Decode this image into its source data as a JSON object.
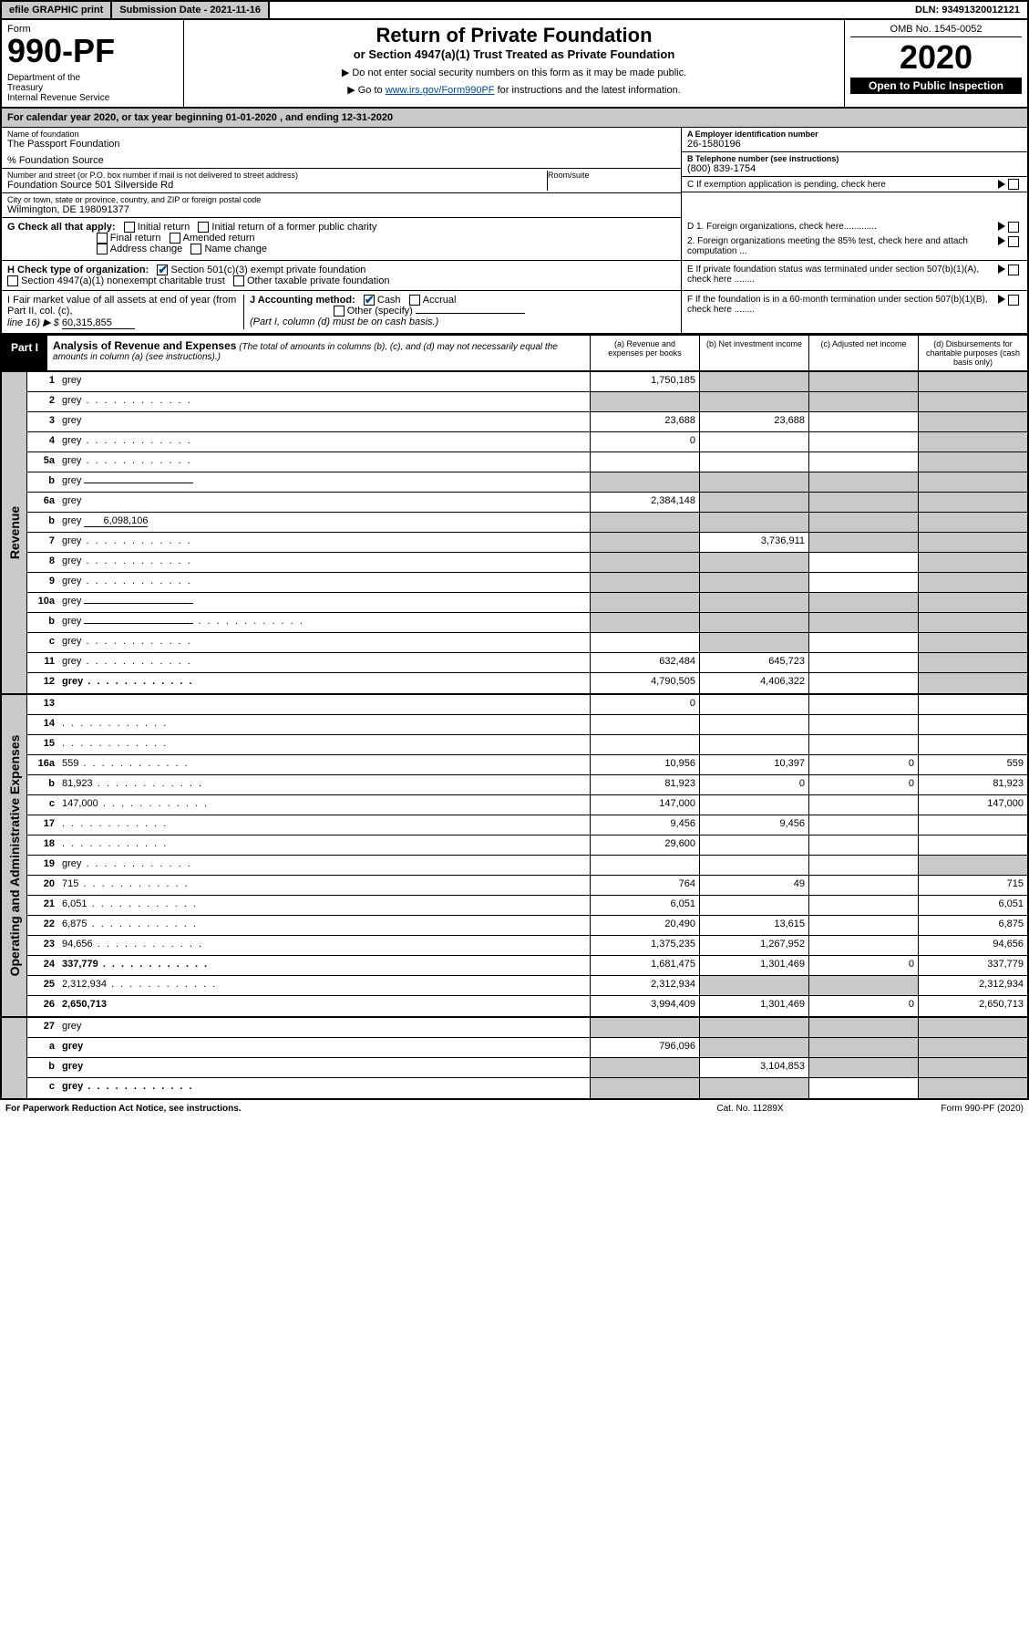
{
  "topbar": {
    "efile": "efile GRAPHIC print",
    "subdate_label": "Submission Date - 2021-11-16",
    "dln": "DLN: 93491320012121"
  },
  "header": {
    "form_word": "Form",
    "form_num": "990-PF",
    "dept": "Department of the Treasury\nInternal Revenue Service",
    "title": "Return of Private Foundation",
    "subtitle": "or Section 4947(a)(1) Trust Treated as Private Foundation",
    "instr1": "▶ Do not enter social security numbers on this form as it may be made public.",
    "instr2_pre": "▶ Go to ",
    "instr2_link": "www.irs.gov/Form990PF",
    "instr2_post": " for instructions and the latest information.",
    "omb": "OMB No. 1545-0052",
    "year": "2020",
    "open_pub": "Open to Public Inspection"
  },
  "calyear": "For calendar year 2020, or tax year beginning 01-01-2020                           , and ending 12-31-2020",
  "entity": {
    "name_lbl": "Name of foundation",
    "name_val": "The Passport Foundation",
    "care_of": "% Foundation Source",
    "addr_lbl": "Number and street (or P.O. box number if mail is not delivered to street address)",
    "addr_val": "Foundation Source 501 Silverside Rd",
    "room_lbl": "Room/suite",
    "city_lbl": "City or town, state or province, country, and ZIP or foreign postal code",
    "city_val": "Wilmington, DE  198091377",
    "a_lbl": "A Employer identification number",
    "a_val": "26-1580196",
    "b_lbl": "B Telephone number (see instructions)",
    "b_val": "(800) 839-1754",
    "c_lbl": "C If exemption application is pending, check here",
    "d1": "D 1. Foreign organizations, check here.............",
    "d2": "2. Foreign organizations meeting the 85% test, check here and attach computation ...",
    "e_lbl": "E  If private foundation status was terminated under section 507(b)(1)(A), check here ........",
    "f_lbl": "F  If the foundation is in a 60-month termination under section 507(b)(1)(B), check here ........"
  },
  "checks": {
    "g_label": "G Check all that apply:",
    "g_opts": [
      "Initial return",
      "Initial return of a former public charity",
      "Final return",
      "Amended return",
      "Address change",
      "Name change"
    ],
    "h_label": "H Check type of organization:",
    "h_opt1": "Section 501(c)(3) exempt private foundation",
    "h_opt2": "Section 4947(a)(1) nonexempt charitable trust",
    "h_opt3": "Other taxable private foundation",
    "i_label": "I Fair market value of all assets at end of year (from Part II, col. (c),",
    "i_line": "line 16) ▶ $",
    "i_val": "60,315,855",
    "j_label": "J Accounting method:",
    "j_cash": "Cash",
    "j_accrual": "Accrual",
    "j_other": "Other (specify)",
    "j_note": "(Part I, column (d) must be on cash basis.)"
  },
  "part1": {
    "label": "Part I",
    "title": "Analysis of Revenue and Expenses",
    "note": "(The total of amounts in columns (b), (c), and (d) may not necessarily equal the amounts in column (a) (see instructions).)",
    "col_a": "(a)   Revenue and expenses per books",
    "col_b": "(b)   Net investment income",
    "col_c": "(c)   Adjusted net income",
    "col_d": "(d)   Disbursements for charitable purposes (cash basis only)"
  },
  "sections": {
    "revenue": "Revenue",
    "opex": "Operating and Administrative Expenses"
  },
  "lines": [
    {
      "n": "1",
      "d": "grey",
      "a": "1,750,185",
      "b": "grey",
      "c": "grey"
    },
    {
      "n": "2",
      "d": "grey",
      "dots": true,
      "a": "grey",
      "b": "grey",
      "c": "grey"
    },
    {
      "n": "3",
      "d": "grey",
      "a": "23,688",
      "b": "23,688",
      "c": ""
    },
    {
      "n": "4",
      "d": "grey",
      "dots": true,
      "a": "0",
      "b": "",
      "c": ""
    },
    {
      "n": "5a",
      "d": "grey",
      "dots": true,
      "a": "",
      "b": "",
      "c": ""
    },
    {
      "n": "b",
      "d": "grey",
      "a": "grey",
      "b": "grey",
      "c": "grey",
      "inline_blank": true
    },
    {
      "n": "6a",
      "d": "grey",
      "a": "2,384,148",
      "b": "grey",
      "c": "grey"
    },
    {
      "n": "b",
      "d": "grey",
      "inline_val": "6,098,106",
      "a": "grey",
      "b": "grey",
      "c": "grey"
    },
    {
      "n": "7",
      "d": "grey",
      "dots": true,
      "a": "grey",
      "b": "3,736,911",
      "c": "grey"
    },
    {
      "n": "8",
      "d": "grey",
      "dots": true,
      "a": "grey",
      "b": "grey",
      "c": ""
    },
    {
      "n": "9",
      "d": "grey",
      "dots": true,
      "a": "grey",
      "b": "grey",
      "c": ""
    },
    {
      "n": "10a",
      "d": "grey",
      "a": "grey",
      "b": "grey",
      "c": "grey",
      "inline_blank": true
    },
    {
      "n": "b",
      "d": "grey",
      "dots": true,
      "a": "grey",
      "b": "grey",
      "c": "grey",
      "inline_blank": true
    },
    {
      "n": "c",
      "d": "grey",
      "dots": true,
      "a": "",
      "b": "grey",
      "c": ""
    },
    {
      "n": "11",
      "d": "grey",
      "dots": true,
      "a": "632,484",
      "b": "645,723",
      "c": ""
    },
    {
      "n": "12",
      "d": "grey",
      "dots": true,
      "bold": true,
      "a": "4,790,505",
      "b": "4,406,322",
      "c": ""
    }
  ],
  "oplines": [
    {
      "n": "13",
      "d": "",
      "a": "0",
      "b": "",
      "c": ""
    },
    {
      "n": "14",
      "d": "",
      "dots": true,
      "a": "",
      "b": "",
      "c": ""
    },
    {
      "n": "15",
      "d": "",
      "dots": true,
      "a": "",
      "b": "",
      "c": ""
    },
    {
      "n": "16a",
      "d": "559",
      "dots": true,
      "a": "10,956",
      "b": "10,397",
      "c": "0"
    },
    {
      "n": "b",
      "d": "81,923",
      "dots": true,
      "a": "81,923",
      "b": "0",
      "c": "0"
    },
    {
      "n": "c",
      "d": "147,000",
      "dots": true,
      "a": "147,000",
      "b": "",
      "c": ""
    },
    {
      "n": "17",
      "d": "",
      "dots": true,
      "a": "9,456",
      "b": "9,456",
      "c": ""
    },
    {
      "n": "18",
      "d": "",
      "dots": true,
      "a": "29,600",
      "b": "",
      "c": ""
    },
    {
      "n": "19",
      "d": "grey",
      "dots": true,
      "a": "",
      "b": "",
      "c": ""
    },
    {
      "n": "20",
      "d": "715",
      "dots": true,
      "a": "764",
      "b": "49",
      "c": ""
    },
    {
      "n": "21",
      "d": "6,051",
      "dots": true,
      "a": "6,051",
      "b": "",
      "c": ""
    },
    {
      "n": "22",
      "d": "6,875",
      "dots": true,
      "a": "20,490",
      "b": "13,615",
      "c": ""
    },
    {
      "n": "23",
      "d": "94,656",
      "dots": true,
      "a": "1,375,235",
      "b": "1,267,952",
      "c": ""
    },
    {
      "n": "24",
      "d": "337,779",
      "dots": true,
      "bold": true,
      "a": "1,681,475",
      "b": "1,301,469",
      "c": "0"
    },
    {
      "n": "25",
      "d": "2,312,934",
      "dots": true,
      "a": "2,312,934",
      "b": "grey",
      "c": "grey"
    },
    {
      "n": "26",
      "d": "2,650,713",
      "bold": true,
      "a": "3,994,409",
      "b": "1,301,469",
      "c": "0"
    }
  ],
  "netlines": [
    {
      "n": "27",
      "d": "grey",
      "a": "grey",
      "b": "grey",
      "c": "grey"
    },
    {
      "n": "a",
      "d": "grey",
      "bold": true,
      "a": "796,096",
      "b": "grey",
      "c": "grey"
    },
    {
      "n": "b",
      "d": "grey",
      "bold": true,
      "a": "grey",
      "b": "3,104,853",
      "c": "grey"
    },
    {
      "n": "c",
      "d": "grey",
      "dots": true,
      "bold": true,
      "a": "grey",
      "b": "grey",
      "c": ""
    }
  ],
  "footer": {
    "left": "For Paperwork Reduction Act Notice, see instructions.",
    "center": "Cat. No. 11289X",
    "right": "Form 990-PF (2020)"
  }
}
